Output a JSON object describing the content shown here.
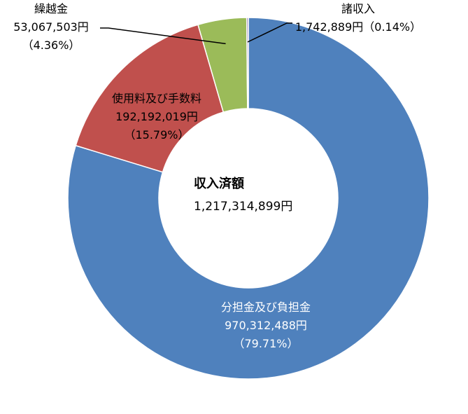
{
  "chart_data": {
    "type": "pie",
    "title": "",
    "center_label": {
      "title": "収入済額",
      "value": "1,217,314,899円"
    },
    "slices": [
      {
        "name": "分担金及び負担金",
        "value": 970312488,
        "amount_label": "970,312,488円",
        "percent_label": "（79.71%）",
        "percent": 79.71,
        "color": "#4F81BD"
      },
      {
        "name": "使用料及び手数料",
        "value": 192192019,
        "amount_label": "192,192,019円",
        "percent_label": "（15.79%）",
        "percent": 15.79,
        "color": "#C0504D"
      },
      {
        "name": "繰越金",
        "value": 53067503,
        "amount_label": "53,067,503円",
        "percent_label": "（4.36%）",
        "percent": 4.36,
        "color": "#9BBB59"
      },
      {
        "name": "諸収入",
        "value": 1742889,
        "amount_label": "1,742,889円（0.14%）",
        "percent_label": "",
        "percent": 0.14,
        "color": "#8064A2"
      }
    ]
  }
}
